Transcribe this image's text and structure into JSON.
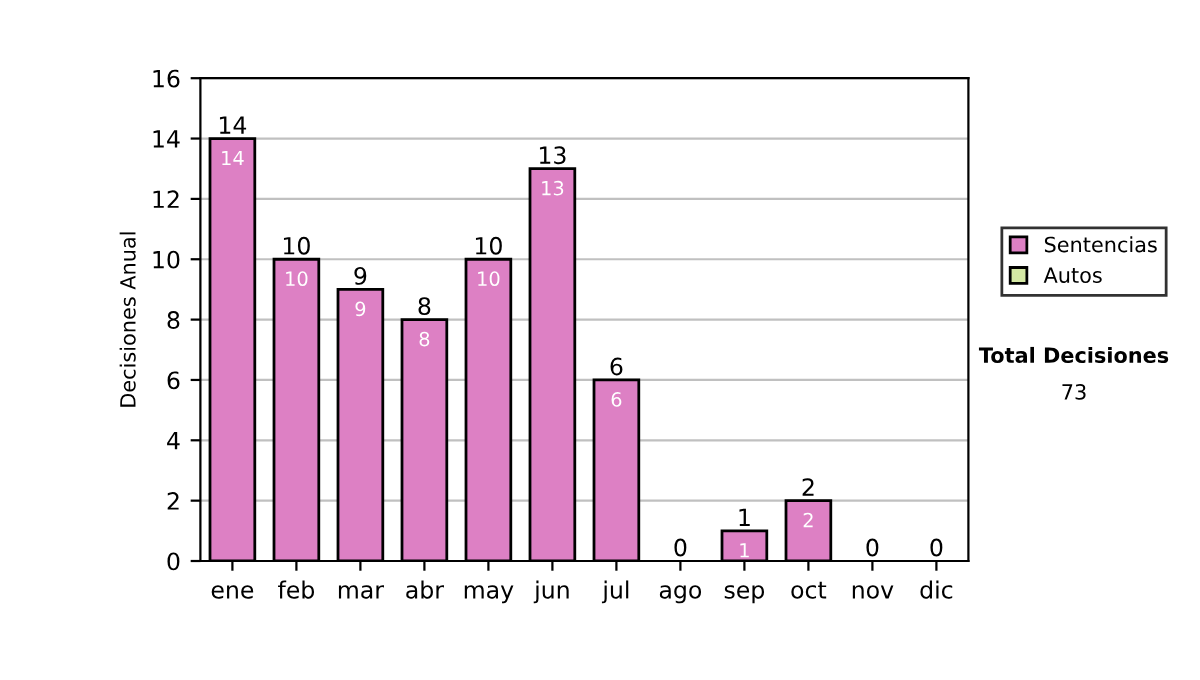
{
  "chart_data": {
    "type": "bar",
    "stacked": true,
    "ylabel": "Decisiones Anual",
    "categories": [
      "ene",
      "feb",
      "mar",
      "abr",
      "may",
      "jun",
      "jul",
      "ago",
      "sep",
      "oct",
      "nov",
      "dic"
    ],
    "series": [
      {
        "name": "Sentencias",
        "color": "#dd80c4",
        "values": [
          14,
          10,
          9,
          8,
          10,
          13,
          6,
          0,
          1,
          2,
          0,
          0
        ],
        "value_labels": [
          "14",
          "10",
          "9",
          "8",
          "10",
          "13",
          "6",
          null,
          "1",
          "2",
          null,
          null
        ]
      },
      {
        "name": "Autos",
        "color": "#d4e8a4",
        "values": [
          0,
          0,
          0,
          0,
          0,
          0,
          0,
          0,
          0,
          0,
          0,
          0
        ]
      }
    ],
    "totals": [
      "14",
      "10",
      "9",
      "8",
      "10",
      "13",
      "6",
      "0",
      "1",
      "2",
      "0",
      "0"
    ],
    "ylim": [
      0,
      16
    ],
    "yticks": [
      0,
      2,
      4,
      6,
      8,
      10,
      12,
      14,
      16
    ],
    "grid": "y",
    "legend": "right",
    "annotations": [
      "Total Decisiones",
      "73"
    ]
  }
}
